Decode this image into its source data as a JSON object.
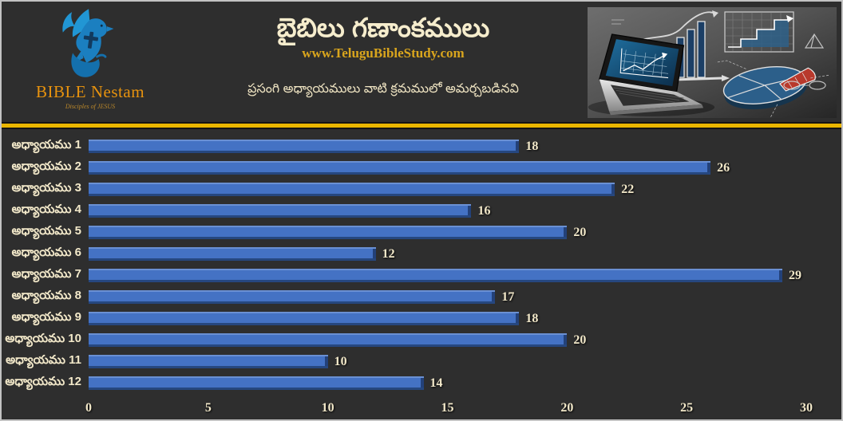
{
  "header": {
    "logo": {
      "name": "BIBLE Nestam",
      "tagline": "Disciples of JESUS"
    },
    "title": "బైబిలు గణాంకములు",
    "website": "www.TeluguBibleStudy.com",
    "subtitle": "ప్రసంగి అధ్యాయములు వాటి క్రమములో అమర్చబడినవి"
  },
  "colors": {
    "background": "#2e2e2e",
    "frame_border": "#c2c2c2",
    "divider_yellow": "#eab600",
    "bar_blue": "#4472c4",
    "text_cream": "#f2e8c9",
    "url_gold": "#d9a51d",
    "logo_orange": "#e8930e",
    "logo_blue": "#2196d4"
  },
  "chart_data": {
    "type": "bar",
    "orientation": "horizontal",
    "title": "బైబిలు గణాంకములు",
    "subtitle": "ప్రసంగి అధ్యాయములు వాటి క్రమములో అమర్చబడినవి",
    "categories": [
      "అధ్యాయము 1",
      "అధ్యాయము 2",
      "అధ్యాయము 3",
      "అధ్యాయము 4",
      "అధ్యాయము 5",
      "అధ్యాయము 6",
      "అధ్యాయము 7",
      "అధ్యాయము 8",
      "అధ్యాయము 9",
      "అధ్యాయము 10",
      "అధ్యాయము 11",
      "అధ్యాయము 12"
    ],
    "values": [
      18,
      26,
      22,
      16,
      20,
      12,
      29,
      17,
      18,
      20,
      10,
      14
    ],
    "xticks": [
      0,
      5,
      10,
      15,
      20,
      25,
      30
    ],
    "xlim": [
      0,
      30
    ],
    "grid": false,
    "legend": false,
    "data_labels": true,
    "bar_color": "#4472c4",
    "label_color": "#f2e8c9"
  }
}
